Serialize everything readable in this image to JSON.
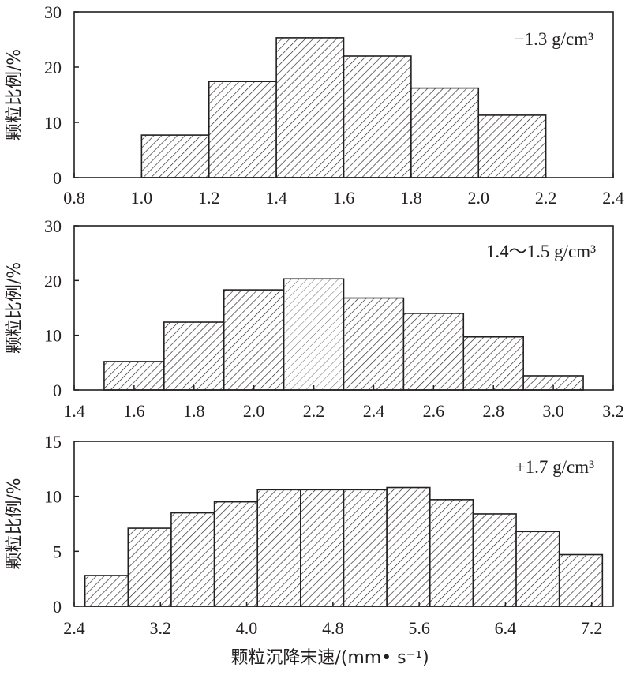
{
  "figure": {
    "xlabel": "颗粒沉降末速/(mm• s⁻¹)"
  },
  "chart_data": [
    {
      "type": "bar",
      "annotation": "−1.3 g/cm³",
      "ylabel": "颗粒比例/%",
      "xlim": [
        0.8,
        2.4
      ],
      "ylim": [
        0,
        30
      ],
      "xticks": [
        "0.8",
        "1.0",
        "1.2",
        "1.4",
        "1.6",
        "1.8",
        "2.0",
        "2.2",
        "2.4"
      ],
      "yticks": [
        "0",
        "10",
        "20",
        "30"
      ],
      "bins": [
        [
          1.0,
          1.2
        ],
        [
          1.2,
          1.4
        ],
        [
          1.4,
          1.6
        ],
        [
          1.6,
          1.8
        ],
        [
          1.8,
          2.0
        ],
        [
          2.0,
          2.2
        ]
      ],
      "values": [
        7.7,
        17.4,
        25.3,
        22.0,
        16.2,
        11.3
      ],
      "grid": false
    },
    {
      "type": "bar",
      "annotation": "1.4～1.5 g/cm³",
      "ylabel": "颗粒比例/%",
      "xlim": [
        1.4,
        3.2
      ],
      "ylim": [
        0,
        30
      ],
      "xticks": [
        "1.4",
        "1.6",
        "1.8",
        "2.0",
        "2.2",
        "2.4",
        "2.6",
        "2.8",
        "3.0",
        "3.2"
      ],
      "yticks": [
        "0",
        "10",
        "20",
        "30"
      ],
      "bins": [
        [
          1.5,
          1.7
        ],
        [
          1.7,
          1.9
        ],
        [
          1.9,
          2.1
        ],
        [
          2.1,
          2.3
        ],
        [
          2.3,
          2.5
        ],
        [
          2.5,
          2.7
        ],
        [
          2.7,
          2.9
        ],
        [
          2.9,
          3.1
        ]
      ],
      "values": [
        5.2,
        12.4,
        18.3,
        20.3,
        16.8,
        14.0,
        9.7,
        2.6
      ],
      "grid": false
    },
    {
      "type": "bar",
      "annotation": "+1.7 g/cm³",
      "ylabel": "颗粒比例/%",
      "xlim": [
        2.4,
        7.4
      ],
      "ylim": [
        0,
        15
      ],
      "xticks": [
        "2.4",
        "3.2",
        "4.0",
        "4.8",
        "5.6",
        "6.4",
        "7.2"
      ],
      "xtick_values": [
        2.4,
        3.2,
        4.0,
        4.8,
        5.6,
        6.4,
        7.2
      ],
      "yticks": [
        "0",
        "5",
        "10",
        "15"
      ],
      "bins": [
        [
          2.5,
          2.9
        ],
        [
          2.9,
          3.3
        ],
        [
          3.3,
          3.7
        ],
        [
          3.7,
          4.1
        ],
        [
          4.1,
          4.5
        ],
        [
          4.5,
          4.9
        ],
        [
          4.9,
          5.3
        ],
        [
          5.3,
          5.7
        ],
        [
          5.7,
          6.1
        ],
        [
          6.1,
          6.5
        ],
        [
          6.5,
          6.9
        ],
        [
          6.9,
          7.3
        ]
      ],
      "values": [
        2.8,
        7.1,
        8.5,
        9.5,
        10.6,
        10.6,
        10.6,
        10.8,
        9.7,
        8.4,
        6.8,
        4.7
      ],
      "grid": false
    }
  ]
}
